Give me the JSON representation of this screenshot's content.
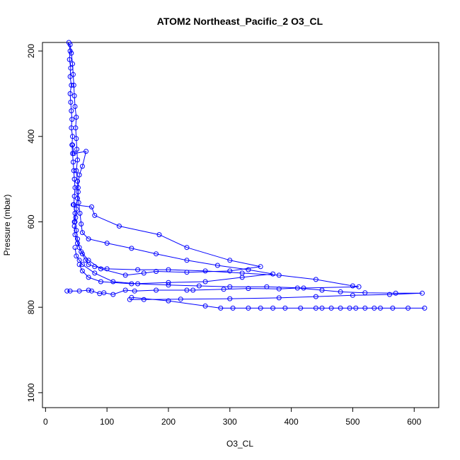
{
  "chart_data": {
    "type": "scatter",
    "title": "ATOM2 Northeast_Pacific_2 O3_CL",
    "xlabel": "O3_CL",
    "ylabel": "Pressure (mbar)",
    "xlim": [
      -5,
      640
    ],
    "ylim": [
      1035,
      180
    ],
    "y_reversed": true,
    "x_ticks": [
      0,
      100,
      200,
      300,
      400,
      500,
      600
    ],
    "y_ticks": [
      200,
      400,
      600,
      800,
      1000
    ],
    "grid": false,
    "legend": "none",
    "series_color": "#0000ff",
    "series": [
      {
        "name": "",
        "points": [
          [
            38,
            180
          ],
          [
            40,
            200
          ],
          [
            39,
            220
          ],
          [
            41,
            240
          ],
          [
            40,
            260
          ],
          [
            42,
            280
          ],
          [
            40,
            300
          ],
          [
            41,
            320
          ],
          [
            42,
            340
          ],
          [
            43,
            360
          ],
          [
            42,
            380
          ],
          [
            44,
            400
          ],
          [
            43,
            420
          ],
          [
            44,
            440
          ],
          [
            45,
            460
          ],
          [
            46,
            480
          ],
          [
            47,
            500
          ],
          [
            48,
            520
          ],
          [
            47,
            540
          ],
          [
            46,
            560
          ],
          [
            48,
            580
          ],
          [
            47,
            600
          ],
          [
            50,
            620
          ],
          [
            52,
            640
          ],
          [
            55,
            660
          ],
          [
            60,
            675
          ],
          [
            65,
            690
          ],
          [
            70,
            700
          ],
          [
            80,
            705
          ],
          [
            100,
            710
          ],
          [
            150,
            712
          ],
          [
            200,
            712
          ],
          [
            260,
            715
          ],
          [
            320,
            720
          ],
          [
            380,
            725
          ],
          [
            440,
            735
          ],
          [
            500,
            750
          ],
          [
            510,
            752
          ],
          [
            420,
            755
          ],
          [
            360,
            752
          ],
          [
            300,
            752
          ],
          [
            250,
            750
          ],
          [
            200,
            748
          ],
          [
            150,
            745
          ],
          [
            110,
            740
          ],
          [
            80,
            720
          ],
          [
            60,
            700
          ],
          [
            55,
            690
          ],
          [
            50,
            680
          ],
          [
            48,
            660
          ]
        ]
      },
      {
        "name": "",
        "points": [
          [
            40,
            185
          ],
          [
            42,
            205
          ],
          [
            44,
            230
          ],
          [
            45,
            255
          ],
          [
            46,
            280
          ],
          [
            47,
            305
          ],
          [
            48,
            330
          ],
          [
            50,
            355
          ],
          [
            49,
            380
          ],
          [
            50,
            405
          ],
          [
            51,
            430
          ],
          [
            52,
            455
          ],
          [
            50,
            480
          ],
          [
            52,
            505
          ],
          [
            53,
            530
          ],
          [
            54,
            555
          ],
          [
            56,
            580
          ],
          [
            58,
            605
          ],
          [
            60,
            625
          ],
          [
            70,
            640
          ],
          [
            100,
            650
          ],
          [
            140,
            662
          ],
          [
            180,
            675
          ],
          [
            230,
            690
          ],
          [
            280,
            702
          ],
          [
            330,
            712
          ],
          [
            370,
            722
          ],
          [
            320,
            730
          ],
          [
            260,
            740
          ],
          [
            200,
            742
          ],
          [
            140,
            745
          ],
          [
            90,
            740
          ],
          [
            70,
            730
          ],
          [
            60,
            715
          ],
          [
            55,
            700
          ]
        ]
      },
      {
        "name": "",
        "points": [
          [
            35,
            762
          ],
          [
            40,
            762
          ],
          [
            55,
            762
          ],
          [
            70,
            760
          ],
          [
            75,
            762
          ],
          [
            88,
            768
          ],
          [
            95,
            766
          ],
          [
            110,
            770
          ],
          [
            130,
            760
          ],
          [
            145,
            762
          ],
          [
            180,
            760
          ],
          [
            230,
            760
          ],
          [
            240,
            760
          ],
          [
            290,
            758
          ],
          [
            330,
            756
          ],
          [
            380,
            757
          ],
          [
            410,
            755
          ],
          [
            450,
            760
          ],
          [
            480,
            764
          ],
          [
            520,
            766
          ],
          [
            570,
            767
          ],
          [
            613,
            767
          ],
          [
            560,
            770
          ],
          [
            500,
            772
          ],
          [
            440,
            775
          ],
          [
            380,
            778
          ],
          [
            300,
            780
          ],
          [
            220,
            781
          ],
          [
            160,
            782
          ],
          [
            137,
            782
          ]
        ]
      },
      {
        "name": "",
        "points": [
          [
            140,
            777
          ],
          [
            200,
            785
          ],
          [
            260,
            797
          ],
          [
            285,
            802
          ],
          [
            305,
            802
          ],
          [
            330,
            802
          ],
          [
            350,
            802
          ],
          [
            370,
            802
          ],
          [
            390,
            802
          ],
          [
            415,
            802
          ],
          [
            440,
            802
          ],
          [
            450,
            802
          ],
          [
            465,
            802
          ],
          [
            480,
            802
          ],
          [
            495,
            802
          ],
          [
            505,
            802
          ],
          [
            520,
            802
          ],
          [
            535,
            802
          ],
          [
            545,
            802
          ],
          [
            565,
            802
          ],
          [
            590,
            802
          ],
          [
            617,
            802
          ]
        ]
      },
      {
        "name": "",
        "points": [
          [
            45,
            560
          ],
          [
            75,
            565
          ],
          [
            80,
            585
          ],
          [
            120,
            610
          ],
          [
            185,
            630
          ],
          [
            230,
            660
          ],
          [
            300,
            690
          ],
          [
            350,
            705
          ],
          [
            300,
            715
          ],
          [
            230,
            718
          ],
          [
            180,
            716
          ],
          [
            160,
            720
          ],
          [
            130,
            725
          ],
          [
            90,
            710
          ],
          [
            70,
            690
          ],
          [
            58,
            670
          ],
          [
            52,
            650
          ],
          [
            48,
            630
          ],
          [
            47,
            610
          ]
        ]
      },
      {
        "name": "",
        "points": [
          [
            44,
            420
          ],
          [
            46,
            440
          ],
          [
            66,
            435
          ],
          [
            60,
            470
          ],
          [
            55,
            490
          ],
          [
            53,
            520
          ],
          [
            52,
            545
          ],
          [
            50,
            570
          ],
          [
            49,
            590
          ],
          [
            48,
            600
          ]
        ]
      }
    ]
  }
}
